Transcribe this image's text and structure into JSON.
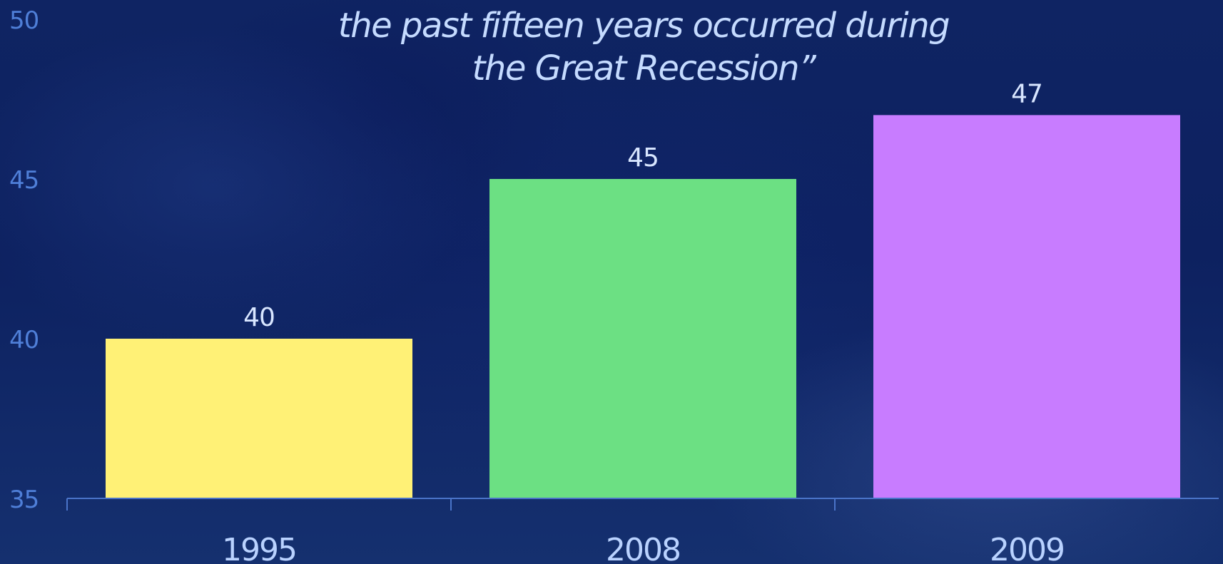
{
  "chart_data": {
    "type": "bar",
    "title_lines": [
      "the past fifteen years occurred during",
      "the Great Recession”"
    ],
    "categories": [
      "1995",
      "2008",
      "2009"
    ],
    "values": [
      40,
      45,
      47
    ],
    "ylim": [
      35,
      50
    ],
    "yticks": [
      "35",
      "40",
      "45",
      "50"
    ],
    "data_labels": [
      "40",
      "45",
      "47"
    ],
    "bar_colors": [
      "#fff176",
      "#6ce083",
      "#c87cff"
    ],
    "axis_color": "#4a74c9",
    "grid": false,
    "legend": false
  }
}
